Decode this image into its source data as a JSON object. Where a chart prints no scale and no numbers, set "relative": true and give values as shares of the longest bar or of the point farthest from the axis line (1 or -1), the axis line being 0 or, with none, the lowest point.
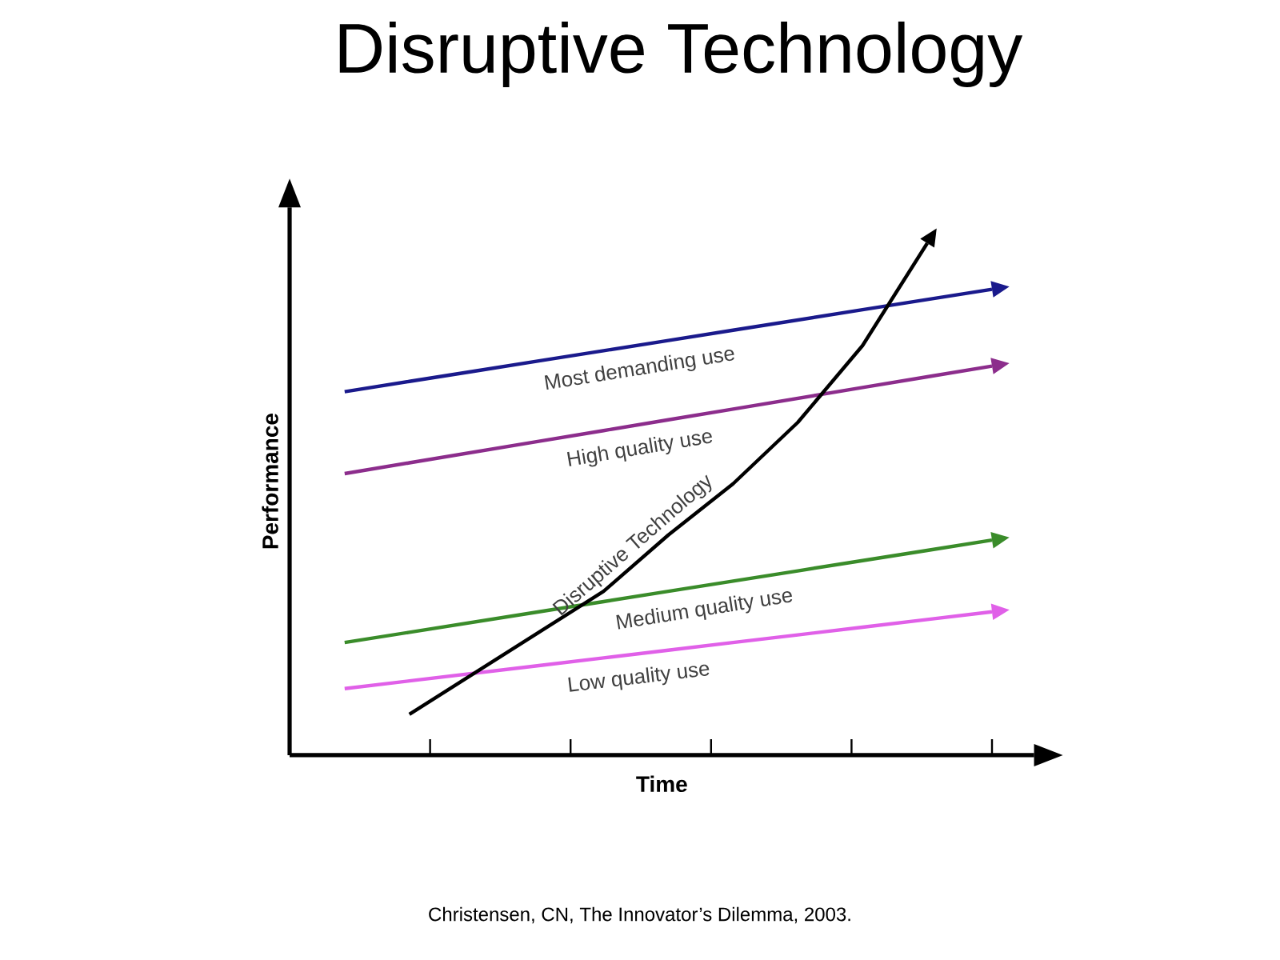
{
  "chart_data": {
    "type": "line",
    "title": "Disruptive Technology",
    "xlabel": "Time",
    "ylabel": "Performance",
    "relative": true,
    "categories": [
      null,
      null,
      null,
      null,
      null,
      null,
      null,
      null,
      null,
      null,
      null
    ],
    "annotations": [
      "Christensen, CN, The Innovator’s Dilemma, 2003."
    ],
    "series": [
      {
        "name": "Most demanding use",
        "color": "#1a1a8c",
        "values": [
          0.71,
          0.73,
          0.75,
          0.77,
          0.79,
          0.81,
          0.83,
          0.85,
          0.87,
          0.89,
          0.91
        ]
      },
      {
        "name": "High quality use",
        "color": "#8c2d8c",
        "values": [
          0.55,
          0.571,
          0.592,
          0.613,
          0.634,
          0.655,
          0.676,
          0.697,
          0.718,
          0.739,
          0.76
        ]
      },
      {
        "name": "Medium quality use",
        "color": "#3a8c2a",
        "values": [
          0.22,
          0.24,
          0.26,
          0.28,
          0.3,
          0.32,
          0.34,
          0.36,
          0.38,
          0.4,
          0.42
        ]
      },
      {
        "name": "Low quality use",
        "color": "#e060e8",
        "values": [
          0.13,
          0.145,
          0.16,
          0.175,
          0.19,
          0.205,
          0.22,
          0.235,
          0.25,
          0.265,
          0.28
        ]
      },
      {
        "name": "Disruptive Technology",
        "color": "#000000",
        "values": [
          null,
          0.08,
          0.16,
          0.24,
          0.32,
          0.43,
          0.53,
          0.65,
          0.8,
          1.0,
          null
        ]
      }
    ]
  }
}
